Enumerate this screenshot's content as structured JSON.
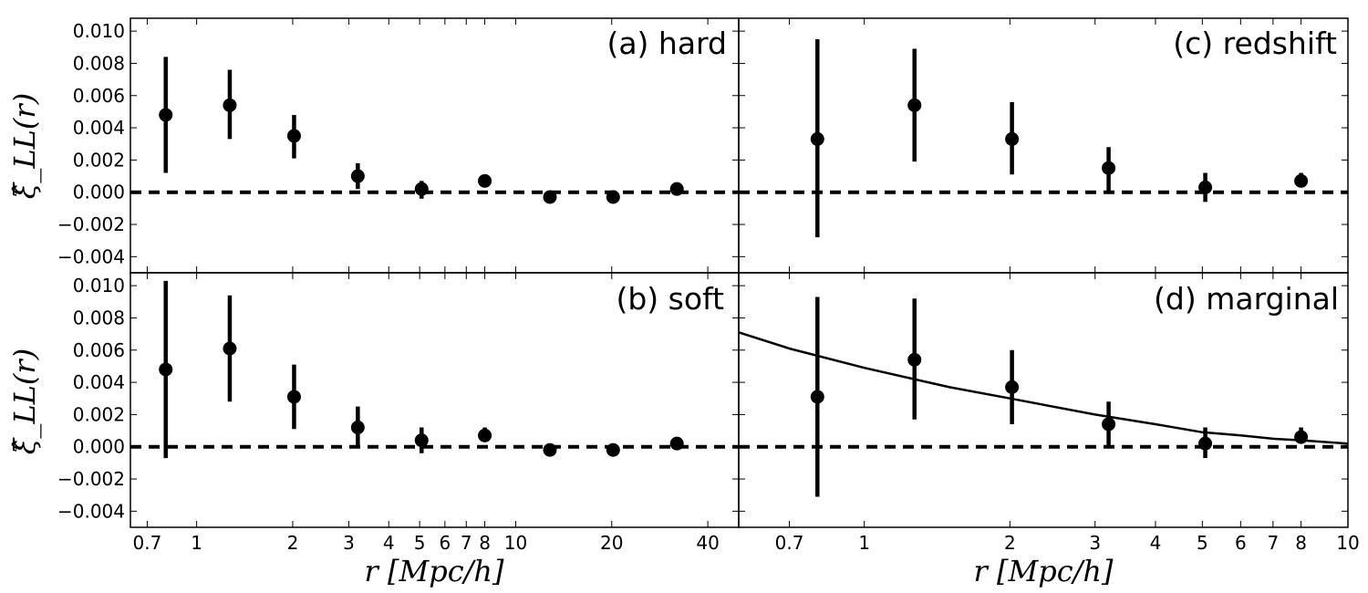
{
  "chart_data": [
    {
      "type": "scatter",
      "panel_label": "(a) hard",
      "xlabel": "",
      "ylabel": "ξ̂_LL(r)",
      "xscale": "log",
      "xlim": [
        0.62,
        50
      ],
      "ylim": [
        -0.005,
        0.0108
      ],
      "yticks": [
        -0.004,
        -0.002,
        0.0,
        0.002,
        0.004,
        0.006,
        0.008,
        0.01
      ],
      "ytick_labels": [
        "−0.004",
        "−0.002",
        "0.000",
        "0.002",
        "0.004",
        "0.006",
        "0.008",
        "0.010"
      ],
      "reference_line_y": 0.0,
      "series": [
        {
          "x": [
            0.8,
            1.27,
            2.02,
            3.2,
            5.07,
            8.0,
            12.8,
            20.2,
            32.0
          ],
          "y": [
            0.0048,
            0.0054,
            0.0035,
            0.001,
            0.0002,
            0.0007,
            -0.0003,
            -0.0003,
            0.0002
          ],
          "ylow": [
            0.0012,
            0.0033,
            0.0021,
            0.0002,
            -0.0004,
            0.0003,
            -0.0003,
            -0.0003,
            0.0002
          ],
          "yhigh": [
            0.0084,
            0.0076,
            0.0048,
            0.0018,
            0.0007,
            0.0011,
            -0.0003,
            -0.0003,
            0.0002
          ]
        }
      ]
    },
    {
      "type": "scatter",
      "panel_label": "(b) soft",
      "xlabel": "r [Mpc/h]",
      "ylabel": "ξ̂_LL(r)",
      "xscale": "log",
      "xlim": [
        0.62,
        50
      ],
      "ylim": [
        -0.005,
        0.0108
      ],
      "xticks": [
        0.7,
        1,
        2,
        3,
        4,
        5,
        6,
        7,
        8,
        10,
        20,
        40
      ],
      "xtick_labels": [
        "0.7",
        "1",
        "2",
        "3",
        "4",
        "5",
        "6",
        "7",
        "8",
        "10",
        "20",
        "40"
      ],
      "yticks": [
        -0.004,
        -0.002,
        0.0,
        0.002,
        0.004,
        0.006,
        0.008,
        0.01
      ],
      "ytick_labels": [
        "−0.004",
        "−0.002",
        "0.000",
        "0.002",
        "0.004",
        "0.006",
        "0.008",
        "0.010"
      ],
      "reference_line_y": 0.0,
      "series": [
        {
          "x": [
            0.8,
            1.27,
            2.02,
            3.2,
            5.07,
            8.0,
            12.8,
            20.2,
            32.0
          ],
          "y": [
            0.0048,
            0.0061,
            0.0031,
            0.0012,
            0.0004,
            0.0007,
            -0.0002,
            -0.0002,
            0.0002
          ],
          "ylow": [
            -0.0007,
            0.0028,
            0.0011,
            0.0001,
            -0.0004,
            0.0003,
            -0.0002,
            -0.0002,
            0.0002
          ],
          "yhigh": [
            0.0103,
            0.0094,
            0.0051,
            0.0025,
            0.0012,
            0.0012,
            -0.0002,
            -0.0002,
            0.0002
          ]
        }
      ]
    },
    {
      "type": "scatter",
      "panel_label": "(c) redshift",
      "xlabel": "",
      "ylabel": "",
      "xscale": "log",
      "xlim": [
        0.55,
        10
      ],
      "ylim": [
        -0.005,
        0.0108
      ],
      "reference_line_y": 0.0,
      "series": [
        {
          "x": [
            0.8,
            1.27,
            2.02,
            3.2,
            5.07,
            8.0
          ],
          "y": [
            0.0033,
            0.0054,
            0.0033,
            0.0015,
            0.0003,
            0.0007
          ],
          "ylow": [
            -0.0028,
            0.0019,
            0.0011,
            0.0001,
            -0.0006,
            0.0003
          ],
          "yhigh": [
            0.0095,
            0.0089,
            0.0056,
            0.0028,
            0.0012,
            0.0012
          ]
        }
      ]
    },
    {
      "type": "scatter",
      "panel_label": "(d) marginal",
      "xlabel": "r [Mpc/h]",
      "ylabel": "",
      "xscale": "log",
      "xlim": [
        0.55,
        10
      ],
      "ylim": [
        -0.005,
        0.0108
      ],
      "xticks": [
        0.7,
        1,
        2,
        3,
        4,
        5,
        6,
        7,
        8,
        10
      ],
      "xtick_labels": [
        "0.7",
        "1",
        "2",
        "3",
        "4",
        "5",
        "6",
        "7",
        "8",
        "10"
      ],
      "reference_line_y": 0.0,
      "series": [
        {
          "x": [
            0.8,
            1.27,
            2.02,
            3.2,
            5.07,
            8.0
          ],
          "y": [
            0.0031,
            0.0054,
            0.0037,
            0.0014,
            0.0002,
            0.0006
          ],
          "ylow": [
            -0.0031,
            0.0017,
            0.0014,
            0.0001,
            -0.0007,
            0.0002
          ],
          "yhigh": [
            0.0093,
            0.0092,
            0.006,
            0.0028,
            0.0012,
            0.0012
          ]
        }
      ],
      "fit_curve": {
        "x": [
          0.55,
          0.7,
          1.0,
          1.5,
          2.0,
          3.0,
          4.0,
          5.0,
          6.0,
          7.0,
          8.0,
          10.0
        ],
        "y": [
          0.0071,
          0.0061,
          0.0049,
          0.0037,
          0.003,
          0.002,
          0.0014,
          0.0009,
          0.0007,
          0.0005,
          0.0004,
          0.0002
        ]
      }
    }
  ]
}
